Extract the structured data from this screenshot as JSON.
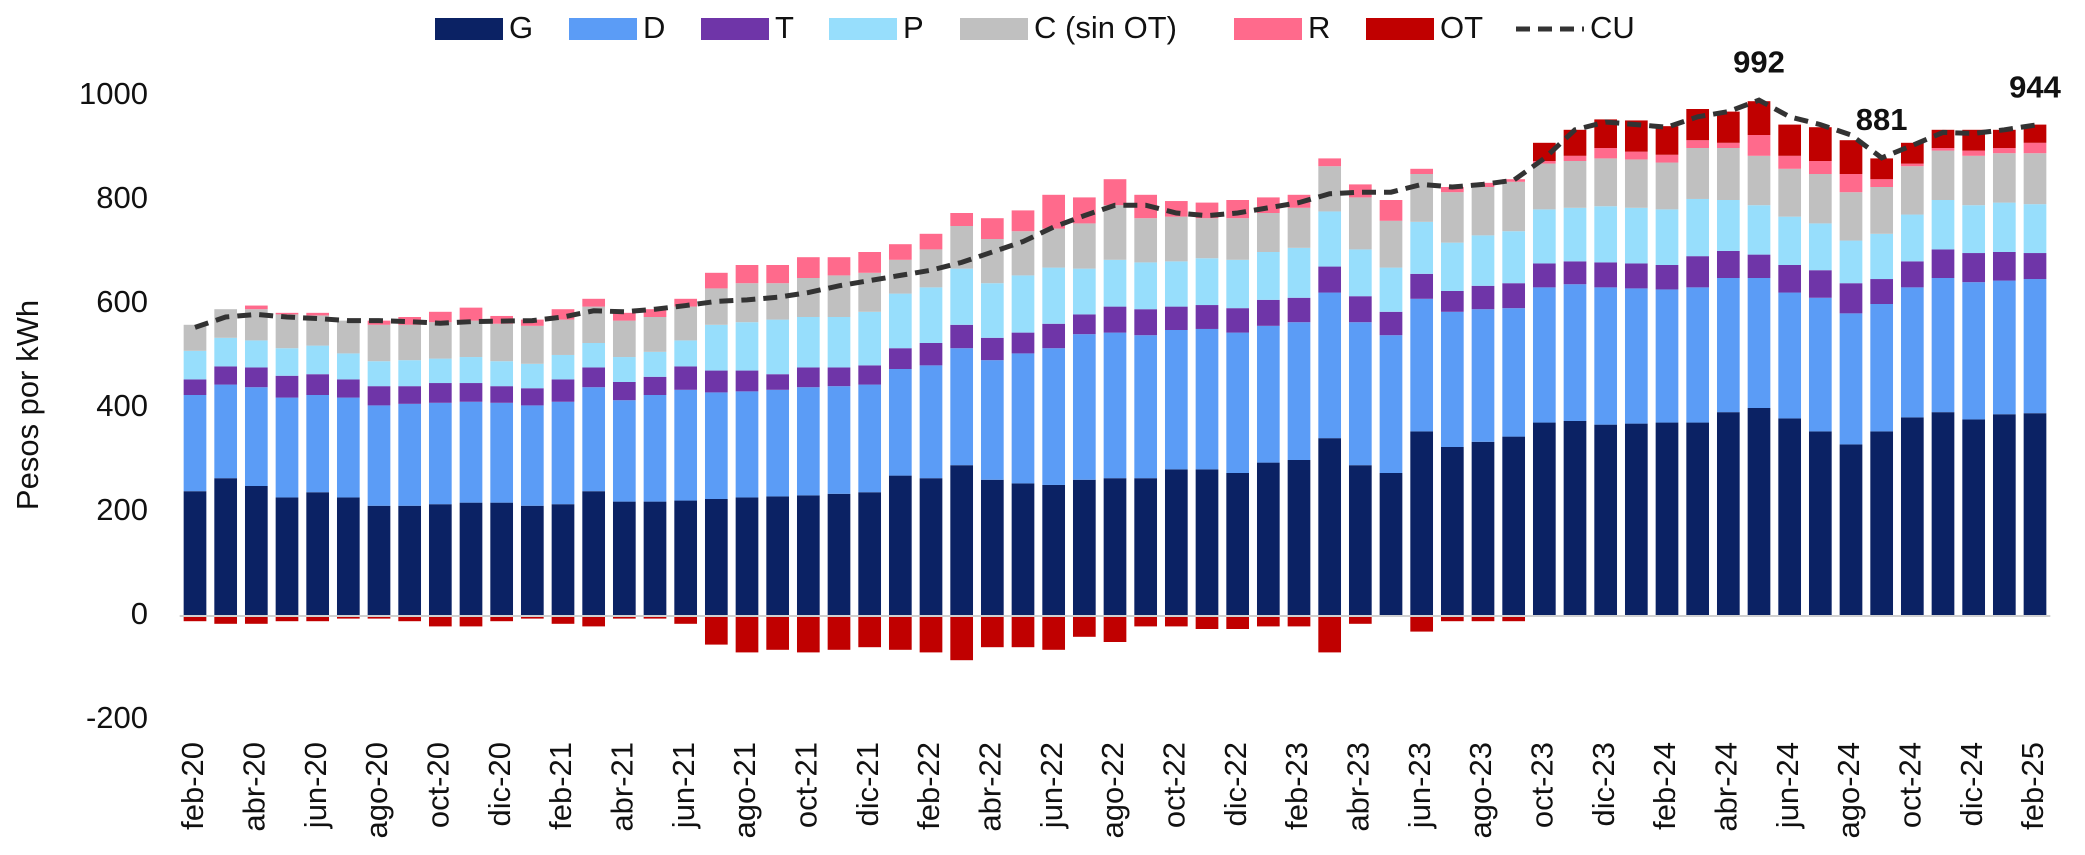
{
  "chart_data": {
    "type": "bar",
    "stacked": true,
    "y_label": "Pesos por kWh",
    "ylim": [
      -200,
      1000
    ],
    "yticks": [
      -200,
      0,
      200,
      400,
      600,
      800,
      1000
    ],
    "grid": false,
    "legend": "top",
    "categories": [
      "feb-20",
      null,
      "abr-20",
      null,
      "jun-20",
      null,
      "ago-20",
      null,
      "oct-20",
      null,
      "dic-20",
      null,
      "feb-21",
      null,
      "abr-21",
      null,
      "jun-21",
      null,
      "ago-21",
      null,
      "oct-21",
      null,
      "dic-21",
      null,
      "feb-22",
      null,
      "abr-22",
      null,
      "jun-22",
      null,
      "ago-22",
      null,
      "oct-22",
      null,
      "dic-22",
      null,
      "feb-23",
      null,
      "abr-23",
      null,
      "jun-23",
      null,
      "ago-23",
      null,
      "oct-23",
      null,
      "dic-23",
      null,
      "feb-24",
      null,
      "abr-24",
      null,
      "jun-24",
      null,
      "ago-24",
      null,
      "oct-24",
      null,
      "dic-24",
      null,
      "feb-25"
    ],
    "series": [
      {
        "name": "G",
        "type": "bar",
        "color": "#0b2264",
        "values": [
          240,
          265,
          250,
          228,
          238,
          228,
          212,
          212,
          215,
          218,
          218,
          212,
          215,
          240,
          220,
          220,
          222,
          225,
          228,
          230,
          232,
          235,
          238,
          270,
          265,
          290,
          262,
          255,
          252,
          262,
          265,
          265,
          282,
          282,
          275,
          295,
          300,
          342,
          290,
          275,
          355,
          325,
          335,
          345,
          372,
          375,
          368,
          370,
          372,
          372,
          392,
          400,
          380,
          355,
          330,
          355,
          382,
          392,
          378,
          388,
          390
        ]
      },
      {
        "name": "D",
        "type": "bar",
        "color": "#5b9cf6",
        "values": [
          185,
          180,
          190,
          192,
          187,
          192,
          193,
          196,
          195,
          194,
          192,
          193,
          197,
          200,
          195,
          205,
          213,
          205,
          204,
          205,
          208,
          207,
          207,
          205,
          217,
          225,
          230,
          250,
          263,
          280,
          280,
          275,
          268,
          270,
          270,
          263,
          265,
          280,
          275,
          265,
          255,
          260,
          255,
          247,
          260,
          263,
          264,
          260,
          256,
          260,
          258,
          250,
          242,
          257,
          252,
          245,
          250,
          258,
          264,
          257,
          258
        ]
      },
      {
        "name": "T",
        "type": "bar",
        "color": "#6f35a8",
        "values": [
          30,
          35,
          38,
          42,
          40,
          35,
          37,
          34,
          38,
          36,
          32,
          33,
          43,
          38,
          35,
          35,
          45,
          42,
          40,
          30,
          38,
          36,
          37,
          40,
          43,
          45,
          43,
          40,
          47,
          38,
          50,
          50,
          45,
          46,
          47,
          50,
          47,
          50,
          50,
          45,
          48,
          40,
          45,
          48,
          46,
          44,
          48,
          48,
          47,
          60,
          52,
          45,
          53,
          53,
          58,
          48,
          50,
          55,
          56,
          55,
          50
        ]
      },
      {
        "name": "P",
        "type": "bar",
        "color": "#97defc",
        "values": [
          55,
          55,
          52,
          53,
          55,
          50,
          48,
          50,
          47,
          50,
          48,
          47,
          47,
          47,
          48,
          48,
          50,
          88,
          93,
          105,
          97,
          97,
          103,
          105,
          107,
          108,
          105,
          110,
          108,
          88,
          90,
          90,
          87,
          90,
          93,
          92,
          96,
          106,
          90,
          85,
          100,
          93,
          97,
          100,
          104,
          103,
          108,
          107,
          107,
          110,
          98,
          95,
          93,
          90,
          82,
          87,
          90,
          95,
          92,
          95,
          94
        ]
      },
      {
        "name": "C (sin OT)",
        "type": "bar",
        "color": "#c0c0c0",
        "values": [
          50,
          55,
          60,
          65,
          58,
          63,
          70,
          68,
          70,
          70,
          72,
          73,
          68,
          70,
          70,
          67,
          65,
          70,
          75,
          70,
          75,
          80,
          75,
          65,
          73,
          82,
          85,
          85,
          75,
          87,
          105,
          85,
          86,
          77,
          80,
          75,
          77,
          87,
          100,
          90,
          92,
          97,
          93,
          95,
          88,
          90,
          92,
          93,
          90,
          98,
          100,
          95,
          92,
          95,
          93,
          90,
          93,
          95,
          95,
          95,
          98
        ]
      },
      {
        "name": "R",
        "type": "bar",
        "color": "#ff6a8c",
        "values": [
          0,
          0,
          7,
          3,
          5,
          0,
          8,
          15,
          20,
          25,
          15,
          12,
          20,
          15,
          15,
          15,
          15,
          30,
          35,
          35,
          40,
          35,
          40,
          30,
          30,
          25,
          40,
          40,
          65,
          50,
          50,
          45,
          30,
          30,
          35,
          30,
          25,
          15,
          25,
          40,
          10,
          10,
          8,
          5,
          5,
          10,
          20,
          15,
          15,
          15,
          10,
          40,
          25,
          25,
          35,
          15,
          5,
          5,
          10,
          10,
          20
        ]
      },
      {
        "name": "OT",
        "type": "bar",
        "color": "#c00000",
        "values": [
          -10,
          -15,
          -15,
          -10,
          -10,
          -5,
          -5,
          -10,
          -20,
          -20,
          -10,
          -5,
          -15,
          -20,
          -5,
          -5,
          -15,
          -55,
          -70,
          -65,
          -70,
          -65,
          -60,
          -65,
          -70,
          -85,
          -60,
          -60,
          -65,
          -40,
          -50,
          -20,
          -20,
          -25,
          -25,
          -20,
          -20,
          -70,
          -15,
          0,
          -30,
          -10,
          -10,
          -10,
          35,
          50,
          55,
          60,
          55,
          60,
          60,
          65,
          60,
          65,
          65,
          40,
          40,
          35,
          40,
          35,
          35
        ]
      },
      {
        "name": "CU",
        "type": "line",
        "color": "#333333",
        "dashed": true,
        "values": [
          555,
          575,
          580,
          575,
          572,
          568,
          568,
          566,
          563,
          566,
          567,
          568,
          575,
          587,
          585,
          590,
          597,
          605,
          608,
          613,
          622,
          635,
          645,
          655,
          665,
          680,
          700,
          720,
          748,
          770,
          790,
          790,
          775,
          770,
          775,
          785,
          795,
          812,
          815,
          815,
          830,
          825,
          830,
          838,
          880,
          935,
          950,
          945,
          940,
          960,
          970,
          992,
          960,
          945,
          925,
          881,
          905,
          930,
          928,
          935,
          944
        ],
        "value_labels": [
          null,
          null,
          null,
          null,
          null,
          null,
          null,
          null,
          null,
          null,
          null,
          null,
          null,
          null,
          null,
          null,
          null,
          null,
          null,
          null,
          null,
          null,
          null,
          null,
          null,
          null,
          null,
          null,
          null,
          null,
          null,
          null,
          null,
          null,
          null,
          null,
          null,
          null,
          null,
          null,
          null,
          null,
          null,
          null,
          null,
          null,
          null,
          null,
          null,
          null,
          null,
          "992",
          null,
          null,
          null,
          "881",
          null,
          null,
          null,
          null,
          "944"
        ]
      }
    ]
  }
}
